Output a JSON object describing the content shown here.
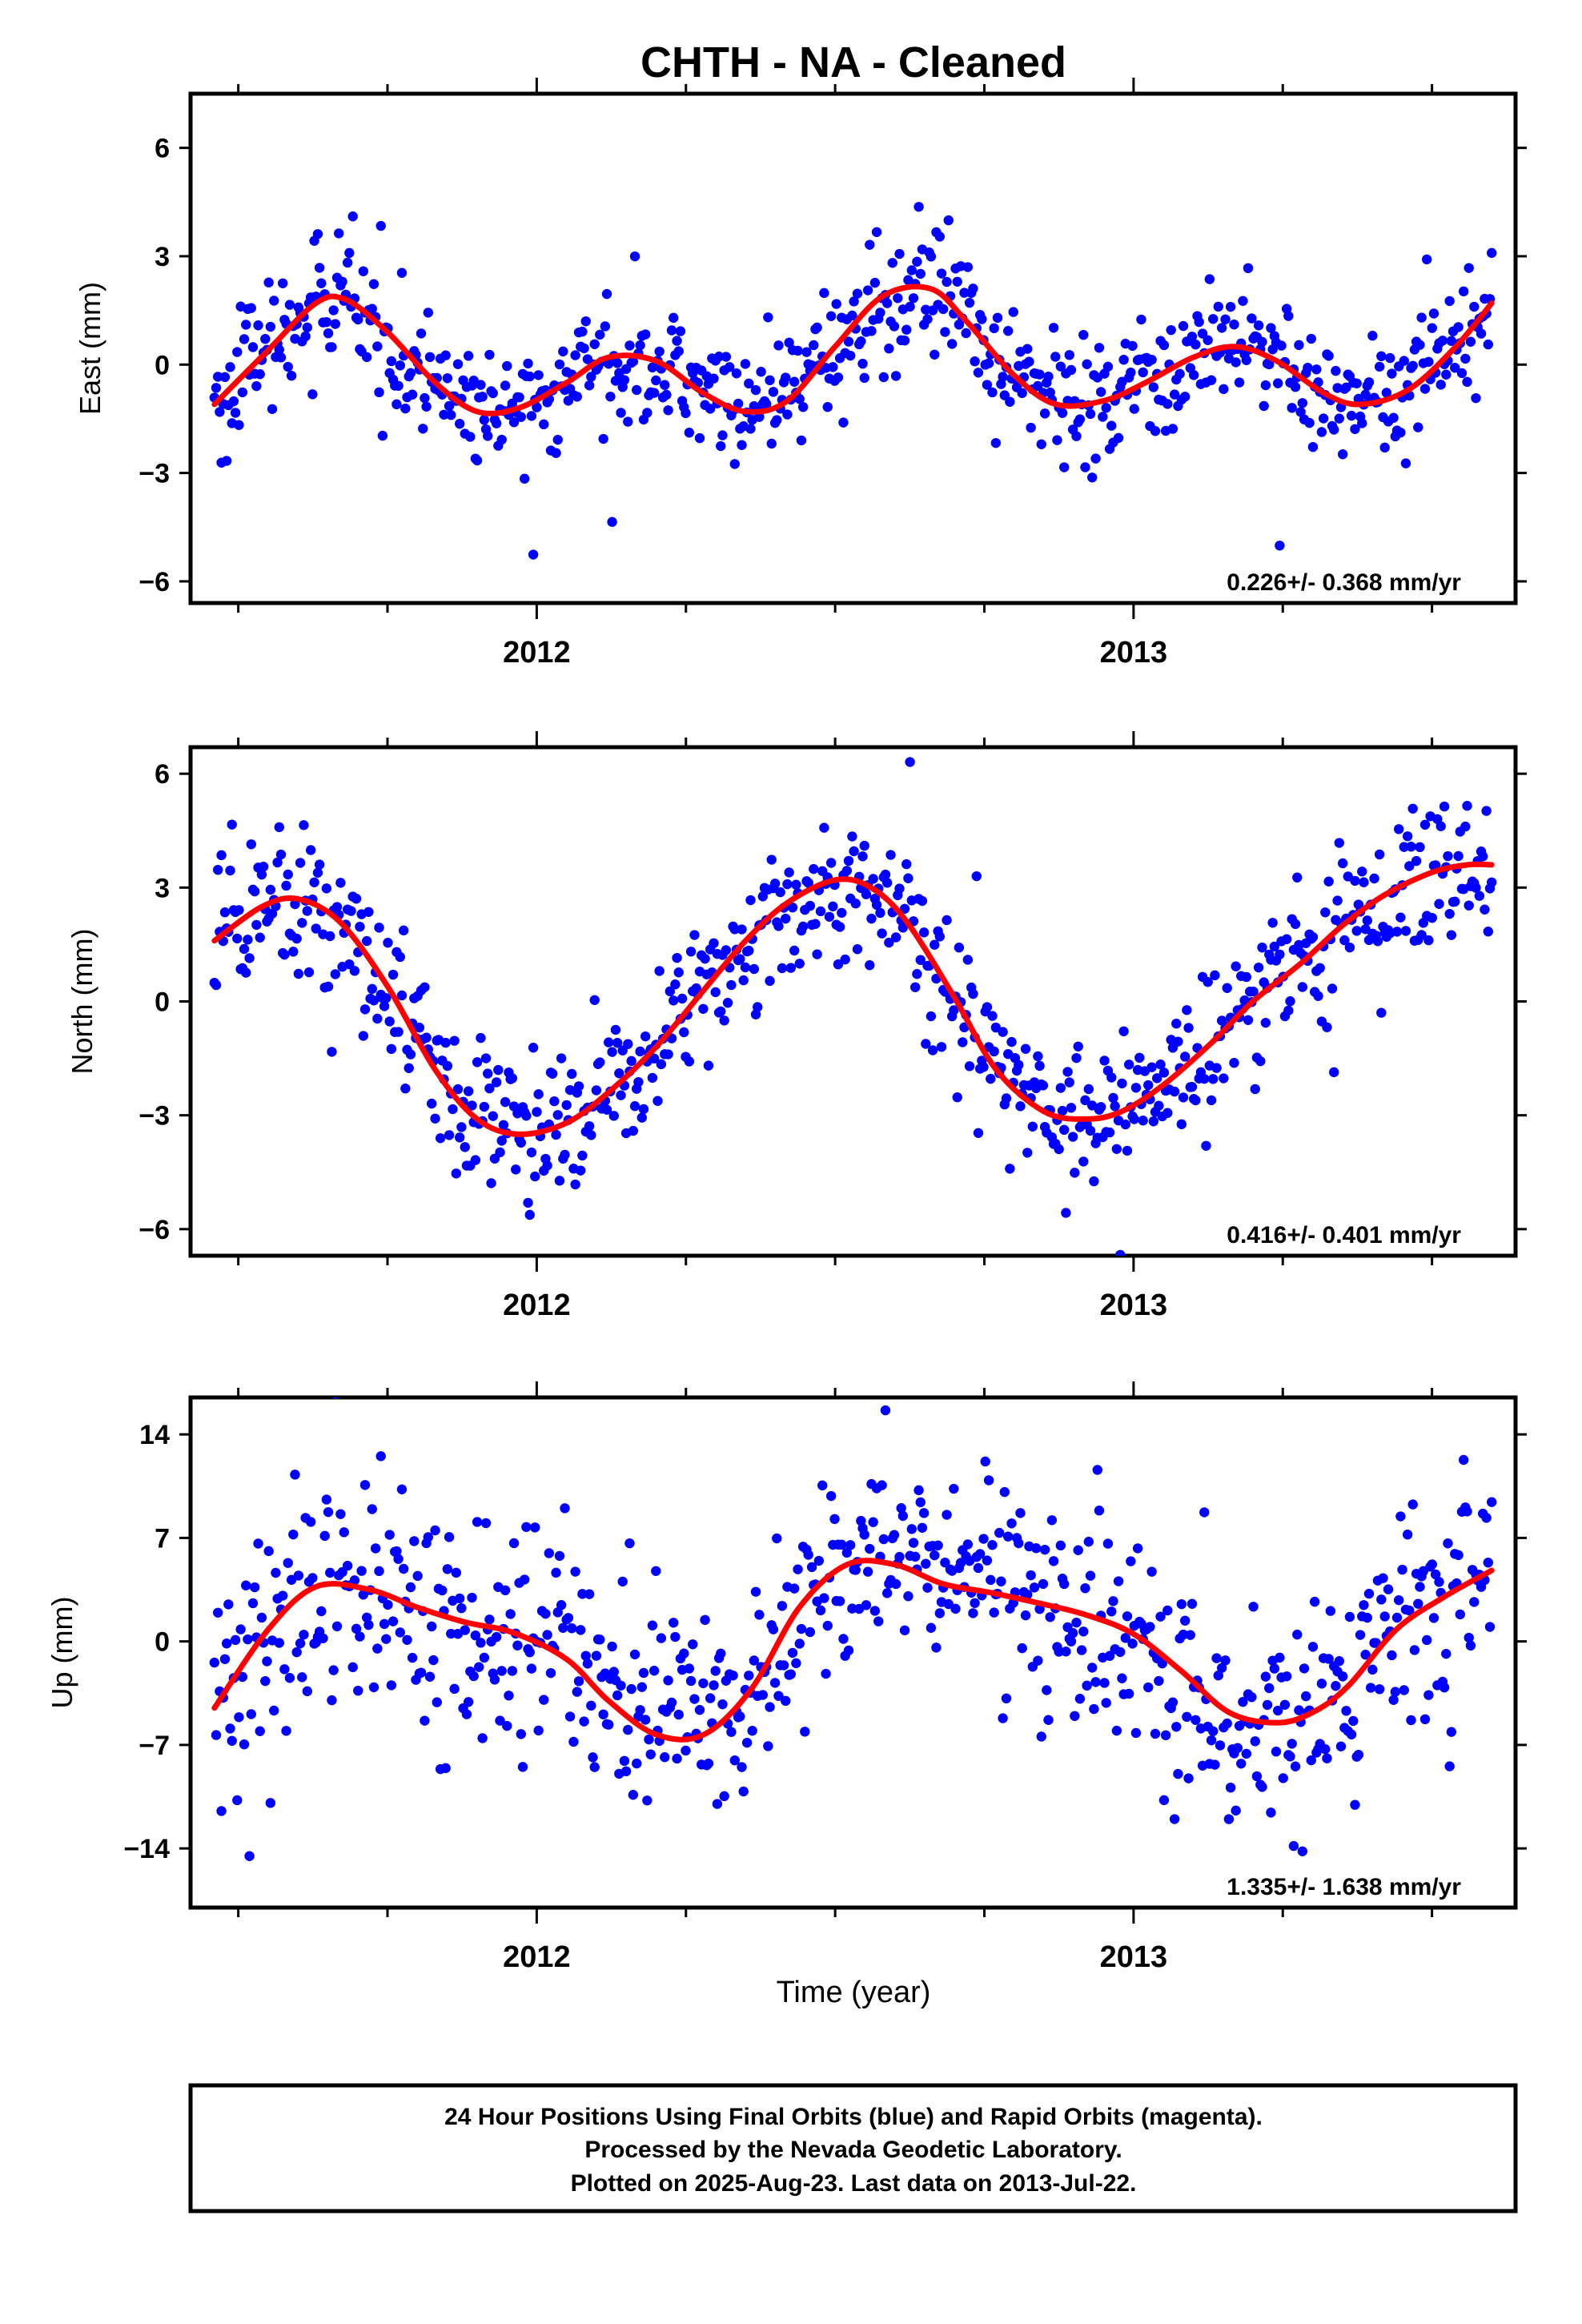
{
  "figure_title": "CHTH  - NA - Cleaned",
  "x_axis_label": "Time (year)",
  "footer_lines": [
    "24 Hour Positions Using Final Orbits (blue) and Rapid Orbits (magenta).",
    "Processed by the Nevada Geodetic Laboratory.",
    "Plotted on 2025-Aug-23. Last data on 2013-Jul-22."
  ],
  "colors": {
    "points": "#0000ff",
    "fit": "#ff0000",
    "frame": "#000000"
  },
  "chart_data": [
    {
      "type": "scatter",
      "component": "East",
      "ylabel": "East (mm)",
      "ylim": [
        -6.6,
        7.5
      ],
      "yticks": [
        -6,
        -3,
        0,
        3,
        6
      ],
      "xlim": [
        2011.42,
        2013.64
      ],
      "xticks_labeled": [
        2012,
        2013
      ],
      "xtick_labels": [
        "2012",
        "2013"
      ],
      "rate_label": "0.226+/- 0.368 mm/yr",
      "fit_curve": {
        "x": [
          2011.46,
          2011.55,
          2011.63,
          2011.68,
          2011.75,
          2011.83,
          2011.9,
          2011.97,
          2012.05,
          2012.12,
          2012.2,
          2012.28,
          2012.35,
          2012.42,
          2012.5,
          2012.58,
          2012.66,
          2012.72,
          2012.8,
          2012.87,
          2012.95,
          2013.02,
          2013.1,
          2013.17,
          2013.24,
          2013.32,
          2013.38,
          2013.46,
          2013.54,
          2013.6
        ],
        "y": [
          -1.1,
          0.4,
          1.7,
          1.8,
          0.9,
          -0.5,
          -1.3,
          -1.2,
          -0.5,
          0.2,
          0.1,
          -0.8,
          -1.3,
          -1.0,
          0.5,
          1.9,
          2.1,
          1.2,
          -0.3,
          -1.1,
          -1.0,
          -0.5,
          0.2,
          0.5,
          0.1,
          -0.8,
          -1.1,
          -0.7,
          0.5,
          1.7
        ]
      },
      "points_count": 730
    },
    {
      "type": "scatter",
      "component": "North",
      "ylabel": "North (mm)",
      "ylim": [
        -6.7,
        6.7
      ],
      "yticks": [
        -6,
        -3,
        0,
        3,
        6
      ],
      "xlim": [
        2011.42,
        2013.64
      ],
      "xticks_labeled": [
        2012,
        2013
      ],
      "xtick_labels": [
        "2012",
        "2013"
      ],
      "rate_label": "0.416+/- 0.401 mm/yr",
      "fit_curve": {
        "x": [
          2011.46,
          2011.54,
          2011.6,
          2011.67,
          2011.75,
          2011.83,
          2011.9,
          2011.97,
          2012.05,
          2012.12,
          2012.2,
          2012.28,
          2012.35,
          2012.42,
          2012.5,
          2012.56,
          2012.62,
          2012.7,
          2012.77,
          2012.85,
          2012.92,
          2012.98,
          2013.05,
          2013.13,
          2013.2,
          2013.28,
          2013.35,
          2013.42,
          2013.5,
          2013.56,
          2013.6
        ],
        "y": [
          1.6,
          2.5,
          2.7,
          2.1,
          0.4,
          -1.8,
          -3.1,
          -3.5,
          -3.2,
          -2.4,
          -1.2,
          0.3,
          1.6,
          2.6,
          3.2,
          3.0,
          2.1,
          0.1,
          -1.8,
          -2.9,
          -3.1,
          -2.9,
          -2.2,
          -1.1,
          0.0,
          1.0,
          2.0,
          2.8,
          3.4,
          3.6,
          3.6
        ]
      },
      "points_count": 730
    },
    {
      "type": "scatter",
      "component": "Up",
      "ylabel": "Up (mm)",
      "ylim": [
        -18,
        16.5
      ],
      "yticks": [
        -14,
        -7,
        0,
        7,
        14
      ],
      "xlim": [
        2011.42,
        2013.64
      ],
      "xticks_labeled": [
        2012,
        2013
      ],
      "xtick_labels": [
        "2012",
        "2013"
      ],
      "rate_label": "1.335+/- 1.638 mm/yr",
      "fit_curve": {
        "x": [
          2011.46,
          2011.55,
          2011.63,
          2011.72,
          2011.8,
          2011.88,
          2011.96,
          2012.05,
          2012.12,
          2012.2,
          2012.28,
          2012.36,
          2012.44,
          2012.52,
          2012.6,
          2012.68,
          2012.76,
          2012.84,
          2012.92,
          2013.0,
          2013.08,
          2013.16,
          2013.24,
          2013.3,
          2013.36,
          2013.44,
          2013.52,
          2013.6
        ],
        "y": [
          -4.5,
          0.8,
          3.7,
          3.5,
          2.3,
          1.3,
          0.6,
          -1.2,
          -4.0,
          -6.3,
          -6.3,
          -3.2,
          2.3,
          5.2,
          5.2,
          3.9,
          3.3,
          2.6,
          1.8,
          0.5,
          -2.0,
          -4.8,
          -5.5,
          -4.8,
          -3.0,
          0.8,
          3.0,
          4.8
        ]
      },
      "points_count": 730
    }
  ]
}
